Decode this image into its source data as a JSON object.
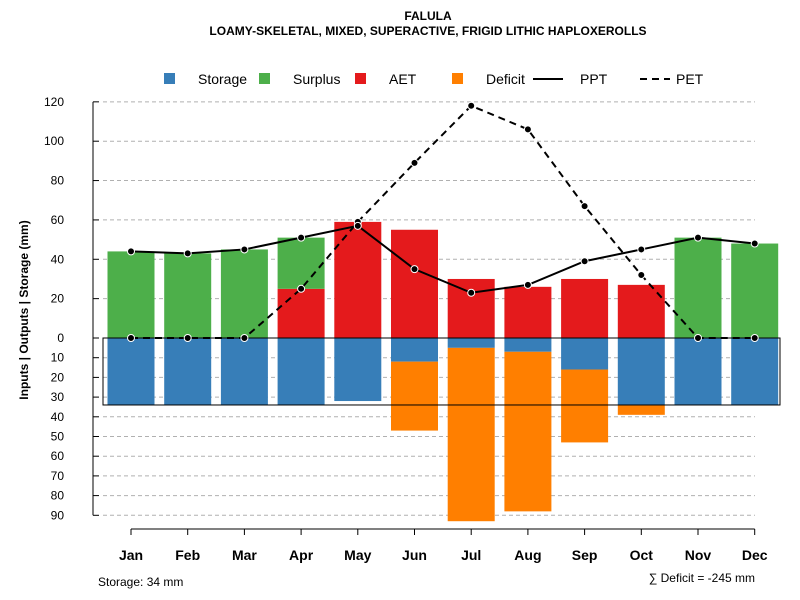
{
  "chart_data": {
    "type": "bar",
    "title": "FALULA",
    "subtitle": "LOAMY-SKELETAL, MIXED, SUPERACTIVE, FRIGID LITHIC HAPLOXEROLLS",
    "ylabel": "Inputs | Outputs | Storage    (mm)",
    "categories": [
      "Jan",
      "Feb",
      "Mar",
      "Apr",
      "May",
      "Jun",
      "Jul",
      "Aug",
      "Sep",
      "Oct",
      "Nov",
      "Dec"
    ],
    "upper_axis": {
      "range": [
        0,
        120
      ],
      "ticks": [
        "0",
        "20",
        "40",
        "60",
        "80",
        "100",
        "120"
      ]
    },
    "lower_axis": {
      "range": [
        0,
        90
      ],
      "ticks": [
        "10",
        "20",
        "30",
        "40",
        "50",
        "60",
        "70",
        "80",
        "90"
      ]
    },
    "legend": [
      {
        "label": "Storage",
        "kind": "box",
        "color": "#377eb8"
      },
      {
        "label": "Surplus",
        "kind": "box",
        "color": "#4daf4a"
      },
      {
        "label": "AET",
        "kind": "box",
        "color": "#e41a1c"
      },
      {
        "label": "Deficit",
        "kind": "box",
        "color": "#ff7f00"
      },
      {
        "label": "PPT",
        "kind": "solid-line",
        "color": "#000000"
      },
      {
        "label": "PET",
        "kind": "dashed-line",
        "color": "#000000"
      }
    ],
    "series": [
      {
        "name": "AET",
        "color": "#e41a1c",
        "values": [
          0,
          0,
          0,
          25,
          59,
          55,
          30,
          26,
          30,
          27,
          0,
          0
        ]
      },
      {
        "name": "Surplus",
        "color": "#4daf4a",
        "values": [
          44,
          43,
          45,
          26,
          0,
          0,
          0,
          0,
          0,
          0,
          51,
          48
        ]
      },
      {
        "name": "Storage",
        "color": "#377eb8",
        "values": [
          34,
          34,
          34,
          34,
          32,
          12,
          5,
          7,
          16,
          34,
          34,
          34
        ]
      },
      {
        "name": "Deficit",
        "color": "#ff7f00",
        "values": [
          0,
          0,
          0,
          0,
          0,
          35,
          88,
          81,
          37,
          5,
          0,
          0
        ]
      },
      {
        "name": "PPT",
        "color": "#000000",
        "style": "solid",
        "values": [
          44,
          43,
          45,
          51,
          57,
          35,
          23,
          27,
          39,
          45,
          51,
          48
        ]
      },
      {
        "name": "PET",
        "color": "#000000",
        "style": "dashed",
        "values": [
          0,
          0,
          0,
          25,
          59,
          89,
          118,
          106,
          67,
          32,
          0,
          0
        ]
      }
    ],
    "storage_capacity": 34,
    "storage_note": "Storage: 34 mm",
    "deficit_note": "∑ Deficit = -245 mm"
  }
}
